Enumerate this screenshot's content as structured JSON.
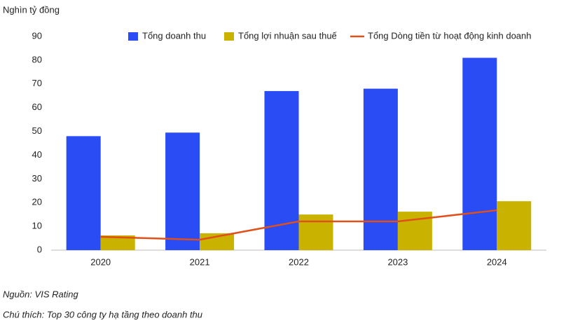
{
  "chart_data": {
    "type": "bar",
    "y_label": "Nghìn tỷ đồng",
    "categories": [
      "2020",
      "2021",
      "2022",
      "2023",
      "2024"
    ],
    "series": [
      {
        "name": "Tổng doanh thu",
        "type": "bar",
        "color": "#2a4cf5",
        "values": [
          48,
          49.5,
          67,
          68,
          81
        ]
      },
      {
        "name": "Tổng lợi nhuận sau thuế",
        "type": "bar",
        "color": "#c9b200",
        "values": [
          6.2,
          7.1,
          15,
          16.2,
          20.6
        ]
      },
      {
        "name": "Tổng Dòng tiền từ hoạt động kinh doanh",
        "type": "line",
        "color": "#e0501a",
        "values": [
          5.6,
          4.4,
          12.1,
          12.1,
          16.8
        ]
      }
    ],
    "ylim": [
      0,
      90
    ],
    "yticks": [
      0,
      10,
      20,
      30,
      40,
      50,
      60,
      70,
      80,
      90
    ],
    "grid": false,
    "source": "Nguồn: VIS Rating",
    "note": "Chú thích: Top 30 công ty hạ tầng theo doanh thu"
  }
}
